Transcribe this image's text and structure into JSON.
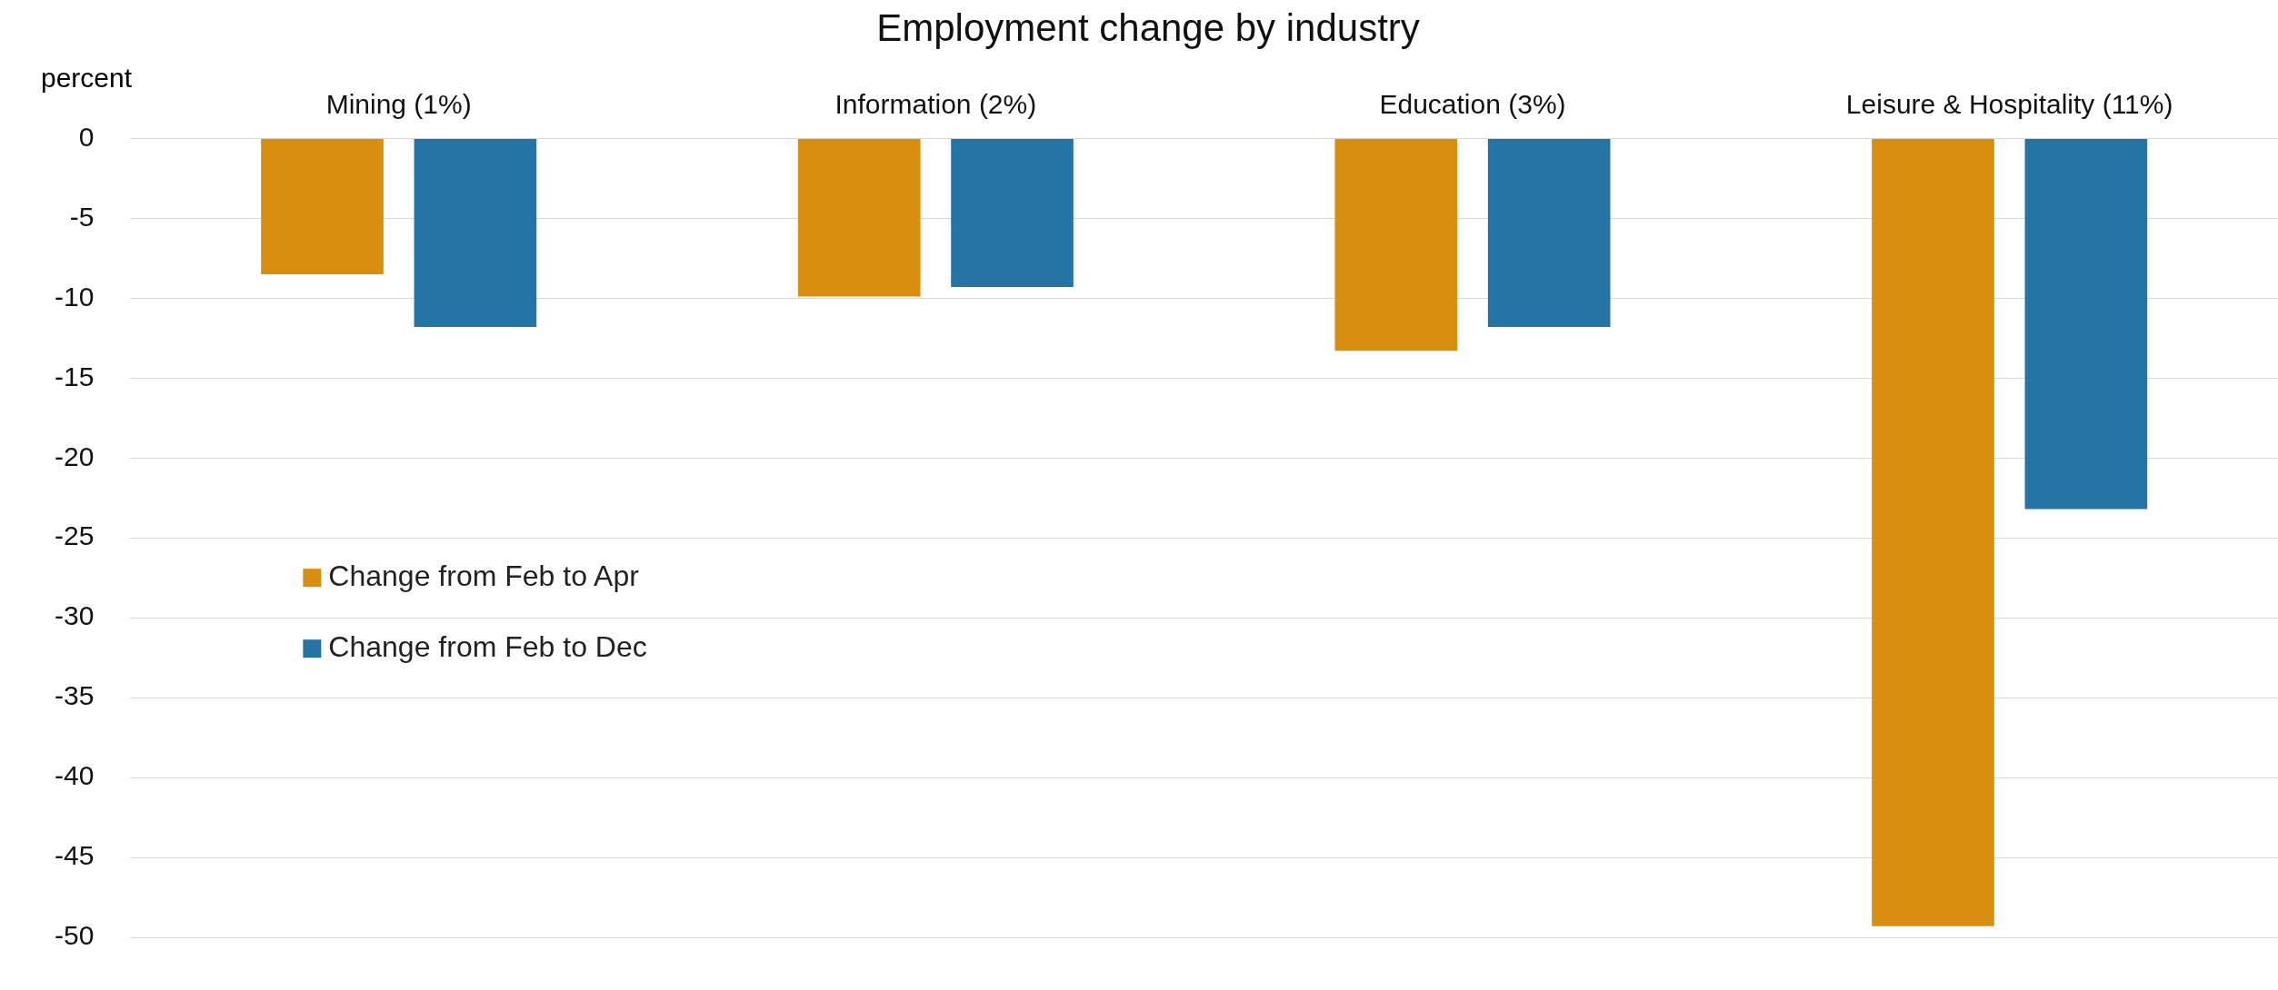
{
  "chart_data": {
    "type": "bar",
    "title": "Employment change by industry",
    "ylabel": "percent",
    "categories": [
      "Mining (1%)",
      "Information (2%)",
      "Education (3%)",
      "Leisure & Hospitality (11%)"
    ],
    "series": [
      {
        "name": "Change from Feb to Apr",
        "color": "#d98e0f",
        "values": [
          -8.5,
          -9.9,
          -13.3,
          -49.3
        ]
      },
      {
        "name": "Change from Feb to Dec",
        "color": "#2474a6",
        "values": [
          -11.8,
          -9.3,
          -11.8,
          -23.2
        ]
      }
    ],
    "ylim": [
      -50,
      0
    ],
    "yticks": [
      0,
      -5,
      -10,
      -15,
      -20,
      -25,
      -30,
      -35,
      -40,
      -45,
      -50
    ],
    "grid": "y",
    "legend": "left"
  }
}
